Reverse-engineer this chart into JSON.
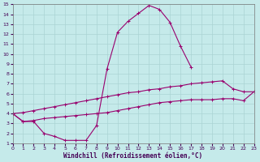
{
  "xlabel": "Windchill (Refroidissement éolien,°C)",
  "xlim": [
    0,
    23
  ],
  "ylim": [
    1,
    15
  ],
  "xticks": [
    0,
    1,
    2,
    3,
    4,
    5,
    6,
    7,
    8,
    9,
    10,
    11,
    12,
    13,
    14,
    15,
    16,
    17,
    18,
    19,
    20,
    21,
    22,
    23
  ],
  "yticks": [
    1,
    2,
    3,
    4,
    5,
    6,
    7,
    8,
    9,
    10,
    11,
    12,
    13,
    14,
    15
  ],
  "background_color": "#c5eaea",
  "grid_color": "#aad4d4",
  "line_color": "#99006e",
  "curve1_x": [
    0,
    1,
    2,
    3,
    4,
    5,
    6,
    7,
    8,
    9,
    10,
    11,
    12,
    13,
    14,
    15,
    16,
    17
  ],
  "curve1_y": [
    4.0,
    3.2,
    3.2,
    2.0,
    1.7,
    1.3,
    1.3,
    1.3,
    2.8,
    8.5,
    12.2,
    13.3,
    14.1,
    14.9,
    14.5,
    13.2,
    10.8,
    8.7
  ],
  "curve2_x": [
    0,
    1,
    2,
    3,
    4,
    5,
    6,
    7,
    8,
    9,
    10,
    11,
    12,
    13,
    14,
    15,
    16,
    17,
    18,
    19,
    20,
    21,
    22,
    23
  ],
  "curve2_y": [
    4.0,
    4.1,
    4.3,
    4.5,
    4.7,
    4.9,
    5.1,
    5.3,
    5.5,
    5.7,
    5.9,
    6.1,
    6.2,
    6.4,
    6.5,
    6.7,
    6.8,
    7.0,
    7.1,
    7.2,
    7.3,
    6.5,
    6.2,
    6.2
  ],
  "curve3_x": [
    0,
    1,
    2,
    3,
    4,
    5,
    6,
    7,
    8,
    9,
    10,
    11,
    12,
    13,
    14,
    15,
    16,
    17,
    18,
    19,
    20,
    21,
    22,
    23
  ],
  "curve3_y": [
    4.0,
    3.2,
    3.3,
    3.5,
    3.6,
    3.7,
    3.8,
    3.9,
    4.0,
    4.1,
    4.3,
    4.5,
    4.7,
    4.9,
    5.1,
    5.2,
    5.3,
    5.4,
    5.4,
    5.4,
    5.5,
    5.5,
    5.3,
    6.2
  ]
}
